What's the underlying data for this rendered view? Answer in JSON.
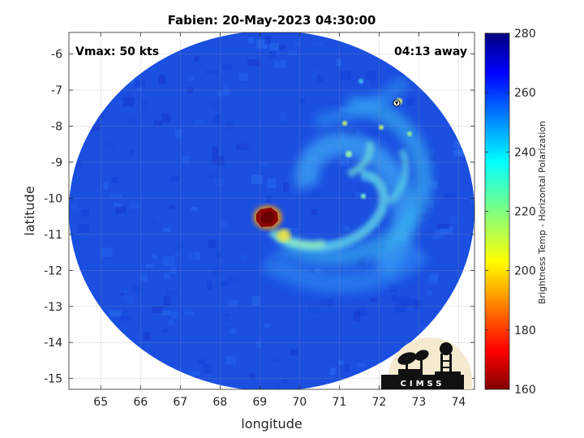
{
  "chart_data": {
    "type": "heatmap",
    "title": "Fabien: 20-May-2023 04:30:00",
    "xlabel": "longitude",
    "ylabel": "latitude",
    "xlim": [
      64.2,
      74.4
    ],
    "ylim": [
      -15.3,
      -5.4
    ],
    "xticks": [
      65,
      66,
      67,
      68,
      69,
      70,
      71,
      72,
      73,
      74
    ],
    "yticks": [
      -6,
      -7,
      -8,
      -9,
      -10,
      -11,
      -12,
      -13,
      -14,
      -15
    ],
    "grid": true,
    "colormap": "jet",
    "colorbar": {
      "label": "Brightness Temp - Horizontal Polarization",
      "min": 160,
      "max": 280,
      "ticks": [
        280,
        260,
        240,
        220,
        200,
        180,
        160
      ]
    },
    "annotations": {
      "vmax": "Vmax: 50 kts",
      "away": "04:13 away"
    },
    "storm_center": {
      "lon": 69.2,
      "lat": -10.5,
      "min_temp": 165
    },
    "background_temp": 262,
    "swath_center": {
      "lon": 69.3,
      "lat": -10.4
    },
    "logo_text": "CIMSS"
  },
  "colors": {
    "background": "#ffffff",
    "swath_base": "#1a4fe0",
    "eye": "#8b0000"
  }
}
